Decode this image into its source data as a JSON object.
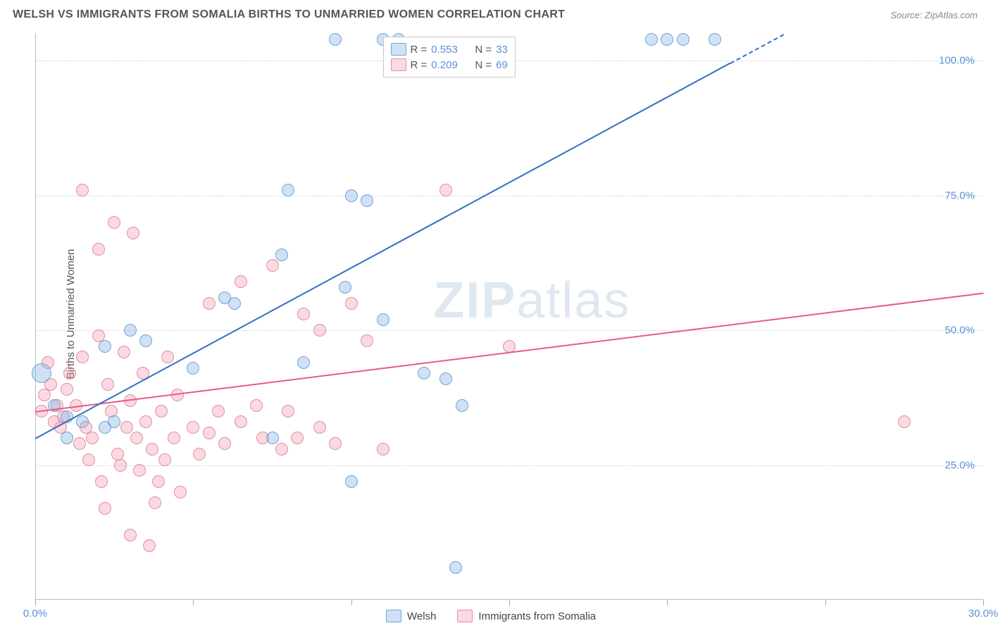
{
  "title": "WELSH VS IMMIGRANTS FROM SOMALIA BIRTHS TO UNMARRIED WOMEN CORRELATION CHART",
  "source": "Source: ZipAtlas.com",
  "ylabel": "Births to Unmarried Women",
  "watermark_a": "ZIP",
  "watermark_b": "atlas",
  "chart": {
    "type": "scatter",
    "background_color": "#ffffff",
    "grid_color": "#d0d0d0",
    "axis_color": "#bbbbbb",
    "tick_label_color": "#5b8fd6",
    "xlim": [
      0,
      30
    ],
    "ylim": [
      0,
      105
    ],
    "xticks": [
      0,
      5,
      10,
      15,
      20,
      25,
      30
    ],
    "xtick_labels": [
      "0.0%",
      "",
      "",
      "",
      "",
      "",
      "30.0%"
    ],
    "yticks": [
      25,
      50,
      75,
      100
    ],
    "ytick_labels": [
      "25.0%",
      "50.0%",
      "75.0%",
      "100.0%"
    ],
    "point_radius": 9,
    "point_radius_large": 14,
    "point_border_width": 1.5,
    "line_width": 2
  },
  "series": {
    "welsh": {
      "label": "Welsh",
      "fill_color": "rgba(120,170,225,0.35)",
      "stroke_color": "#6fa3d8",
      "line_color": "#2f6fc4",
      "R": "0.553",
      "N": "33",
      "trend": {
        "x1": 0,
        "y1": 30,
        "x2": 30,
        "y2": 125,
        "dash_after_x": 22
      },
      "points": [
        {
          "x": 0.2,
          "y": 42,
          "r": 14
        },
        {
          "x": 0.6,
          "y": 36
        },
        {
          "x": 1.0,
          "y": 34
        },
        {
          "x": 1.5,
          "y": 33
        },
        {
          "x": 1.0,
          "y": 30
        },
        {
          "x": 2.2,
          "y": 32
        },
        {
          "x": 2.2,
          "y": 47
        },
        {
          "x": 2.5,
          "y": 33
        },
        {
          "x": 3.0,
          "y": 50
        },
        {
          "x": 3.5,
          "y": 48
        },
        {
          "x": 5.0,
          "y": 43
        },
        {
          "x": 6.0,
          "y": 56
        },
        {
          "x": 6.3,
          "y": 55
        },
        {
          "x": 7.5,
          "y": 30
        },
        {
          "x": 7.8,
          "y": 64
        },
        {
          "x": 8.0,
          "y": 76
        },
        {
          "x": 8.5,
          "y": 44
        },
        {
          "x": 9.5,
          "y": 104
        },
        {
          "x": 9.8,
          "y": 58
        },
        {
          "x": 10.0,
          "y": 75
        },
        {
          "x": 10.5,
          "y": 74
        },
        {
          "x": 10.0,
          "y": 22
        },
        {
          "x": 11.0,
          "y": 52
        },
        {
          "x": 11.0,
          "y": 104
        },
        {
          "x": 11.5,
          "y": 104
        },
        {
          "x": 12.3,
          "y": 42
        },
        {
          "x": 13.0,
          "y": 41
        },
        {
          "x": 13.3,
          "y": 6
        },
        {
          "x": 13.5,
          "y": 36
        },
        {
          "x": 19.5,
          "y": 104
        },
        {
          "x": 20.0,
          "y": 104
        },
        {
          "x": 20.5,
          "y": 104
        },
        {
          "x": 21.5,
          "y": 104
        }
      ]
    },
    "somalia": {
      "label": "Immigrants from Somalia",
      "fill_color": "rgba(240,150,170,0.35)",
      "stroke_color": "#e48ca0",
      "line_color": "#e75a88",
      "R": "0.209",
      "N": "69",
      "trend": {
        "x1": 0,
        "y1": 35,
        "x2": 30,
        "y2": 57
      },
      "points": [
        {
          "x": 0.2,
          "y": 35
        },
        {
          "x": 0.3,
          "y": 38
        },
        {
          "x": 0.4,
          "y": 44
        },
        {
          "x": 0.5,
          "y": 40
        },
        {
          "x": 0.6,
          "y": 33
        },
        {
          "x": 0.7,
          "y": 36
        },
        {
          "x": 0.8,
          "y": 32
        },
        {
          "x": 0.9,
          "y": 34
        },
        {
          "x": 1.0,
          "y": 39
        },
        {
          "x": 1.1,
          "y": 42
        },
        {
          "x": 1.3,
          "y": 36
        },
        {
          "x": 1.4,
          "y": 29
        },
        {
          "x": 1.5,
          "y": 45
        },
        {
          "x": 1.5,
          "y": 76
        },
        {
          "x": 1.6,
          "y": 32
        },
        {
          "x": 1.7,
          "y": 26
        },
        {
          "x": 1.8,
          "y": 30
        },
        {
          "x": 2.0,
          "y": 65
        },
        {
          "x": 2.0,
          "y": 49
        },
        {
          "x": 2.1,
          "y": 22
        },
        {
          "x": 2.2,
          "y": 17
        },
        {
          "x": 2.3,
          "y": 40
        },
        {
          "x": 2.4,
          "y": 35
        },
        {
          "x": 2.5,
          "y": 70
        },
        {
          "x": 2.6,
          "y": 27
        },
        {
          "x": 2.7,
          "y": 25
        },
        {
          "x": 2.8,
          "y": 46
        },
        {
          "x": 2.9,
          "y": 32
        },
        {
          "x": 3.0,
          "y": 12
        },
        {
          "x": 3.0,
          "y": 37
        },
        {
          "x": 3.1,
          "y": 68
        },
        {
          "x": 3.2,
          "y": 30
        },
        {
          "x": 3.3,
          "y": 24
        },
        {
          "x": 3.4,
          "y": 42
        },
        {
          "x": 3.5,
          "y": 33
        },
        {
          "x": 3.6,
          "y": 10
        },
        {
          "x": 3.7,
          "y": 28
        },
        {
          "x": 3.8,
          "y": 18
        },
        {
          "x": 3.9,
          "y": 22
        },
        {
          "x": 4.0,
          "y": 35
        },
        {
          "x": 4.1,
          "y": 26
        },
        {
          "x": 4.2,
          "y": 45
        },
        {
          "x": 4.4,
          "y": 30
        },
        {
          "x": 4.5,
          "y": 38
        },
        {
          "x": 4.6,
          "y": 20
        },
        {
          "x": 5.0,
          "y": 32
        },
        {
          "x": 5.2,
          "y": 27
        },
        {
          "x": 5.5,
          "y": 55
        },
        {
          "x": 5.5,
          "y": 31
        },
        {
          "x": 5.8,
          "y": 35
        },
        {
          "x": 6.0,
          "y": 29
        },
        {
          "x": 6.5,
          "y": 33
        },
        {
          "x": 6.5,
          "y": 59
        },
        {
          "x": 7.0,
          "y": 36
        },
        {
          "x": 7.2,
          "y": 30
        },
        {
          "x": 7.5,
          "y": 62
        },
        {
          "x": 7.8,
          "y": 28
        },
        {
          "x": 8.0,
          "y": 35
        },
        {
          "x": 8.3,
          "y": 30
        },
        {
          "x": 8.5,
          "y": 53
        },
        {
          "x": 9.0,
          "y": 32
        },
        {
          "x": 9.0,
          "y": 50
        },
        {
          "x": 9.5,
          "y": 29
        },
        {
          "x": 10.0,
          "y": 55
        },
        {
          "x": 10.5,
          "y": 48
        },
        {
          "x": 11.0,
          "y": 28
        },
        {
          "x": 13.0,
          "y": 76
        },
        {
          "x": 15.0,
          "y": 47
        },
        {
          "x": 27.5,
          "y": 33
        }
      ]
    }
  },
  "legend_top": {
    "R_label": "R =",
    "N_label": "N ="
  },
  "legend_bottom": {
    "welsh": "Welsh",
    "somalia": "Immigrants from Somalia"
  }
}
